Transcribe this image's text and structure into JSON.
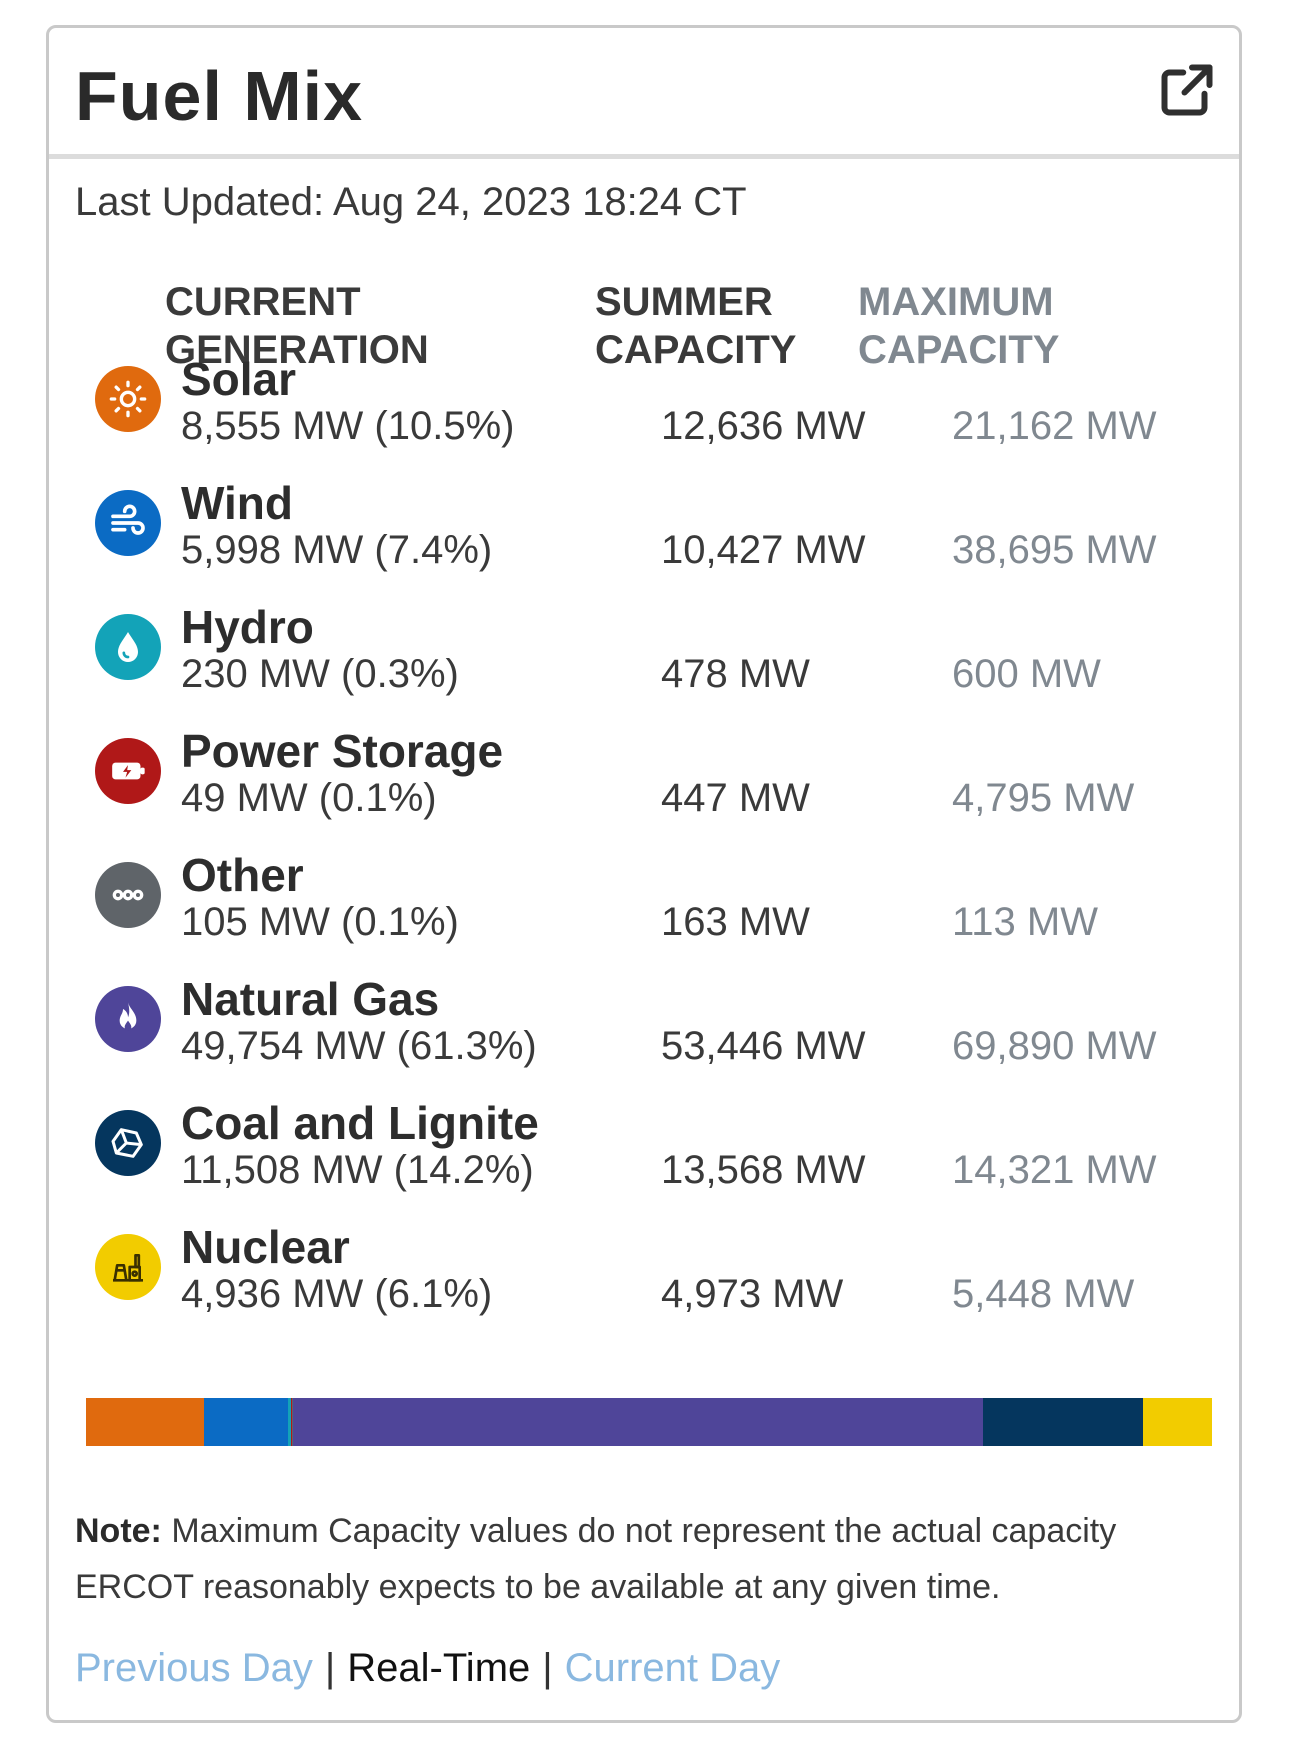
{
  "card": {
    "title": "Fuel Mix",
    "last_updated": "Last Updated: Aug 24, 2023 18:24 CT"
  },
  "columns": {
    "current": "CURRENT GENERATION",
    "summer": "SUMMER CAPACITY",
    "maximum": "MAXIMUM CAPACITY"
  },
  "fuels": [
    {
      "name": "Solar",
      "generation": "8,555 MW (10.5%)",
      "summer": "12,636 MW",
      "maximum": "21,162 MW",
      "color": "#e06a0e",
      "icon": "sun-icon",
      "share": 10.5
    },
    {
      "name": "Wind",
      "generation": "5,998 MW (7.4%)",
      "summer": "10,427 MW",
      "maximum": "38,695 MW",
      "color": "#0b6bc4",
      "icon": "wind-icon",
      "share": 7.4
    },
    {
      "name": "Hydro",
      "generation": "230 MW (0.3%)",
      "summer": "478 MW",
      "maximum": "600 MW",
      "color": "#13a3b8",
      "icon": "water-drop-icon",
      "share": 0.3
    },
    {
      "name": "Power Storage",
      "generation": "49 MW (0.1%)",
      "summer": "447 MW",
      "maximum": "4,795 MW",
      "color": "#b01818",
      "icon": "battery-icon",
      "share": 0.1
    },
    {
      "name": "Other",
      "generation": "105 MW (0.1%)",
      "summer": "163 MW",
      "maximum": "113 MW",
      "color": "#5f6469",
      "icon": "more-dots-icon",
      "share": 0.1
    },
    {
      "name": "Natural Gas",
      "generation": "49,754 MW (61.3%)",
      "summer": "53,446 MW",
      "maximum": "69,890 MW",
      "color": "#4f4599",
      "icon": "flame-icon",
      "share": 61.3
    },
    {
      "name": "Coal and Lignite",
      "generation": "11,508 MW (14.2%)",
      "summer": "13,568 MW",
      "maximum": "14,321 MW",
      "color": "#05365e",
      "icon": "coal-rock-icon",
      "share": 14.2
    },
    {
      "name": "Nuclear",
      "generation": "4,936 MW (6.1%)",
      "summer": "4,973 MW",
      "maximum": "5,448 MW",
      "color": "#f2cc00",
      "icon": "nuclear-plant-icon",
      "share": 6.1
    }
  ],
  "note": {
    "label": "Note:",
    "text": " Maximum Capacity values do not represent the actual capacity ERCOT reasonably expects to be available at any given time."
  },
  "footer": {
    "previous_day": "Previous Day",
    "real_time": "Real-Time",
    "current_day": "Current Day",
    "separator": "|"
  }
}
